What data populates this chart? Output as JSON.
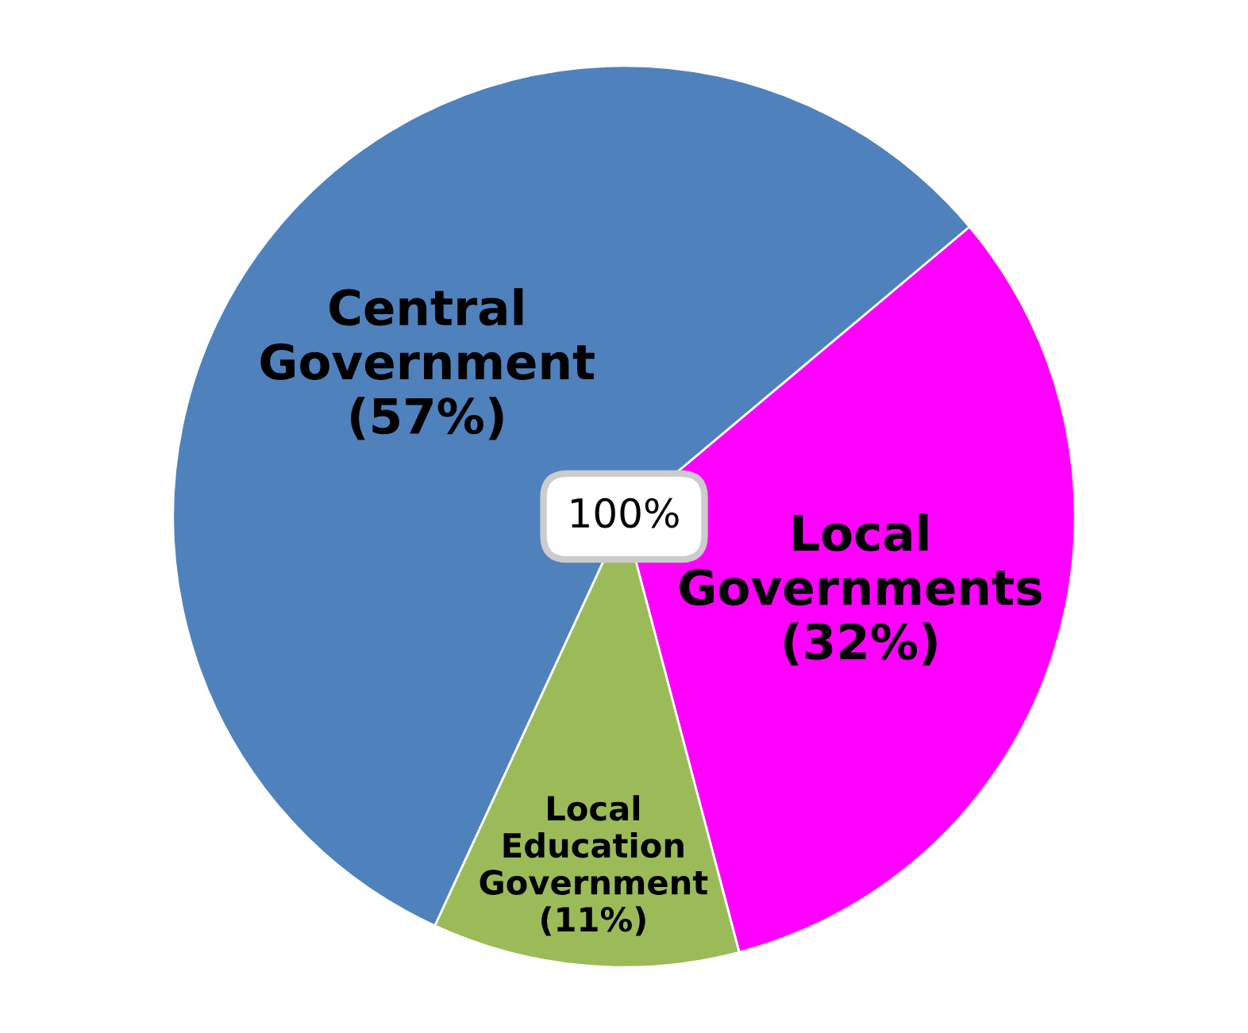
{
  "chart_data": {
    "type": "pie",
    "categories": [
      "Local\nGovernments",
      "Local\nEducation\nGovernment",
      "Central\nGovernment"
    ],
    "values": [
      32,
      11,
      57
    ],
    "colors": [
      "#ff00ff",
      "#9bbb59",
      "#4f81bd"
    ],
    "value_labels": [
      "(32%)",
      "(11%)",
      "(57%)"
    ],
    "annotations": [
      "100%"
    ]
  }
}
